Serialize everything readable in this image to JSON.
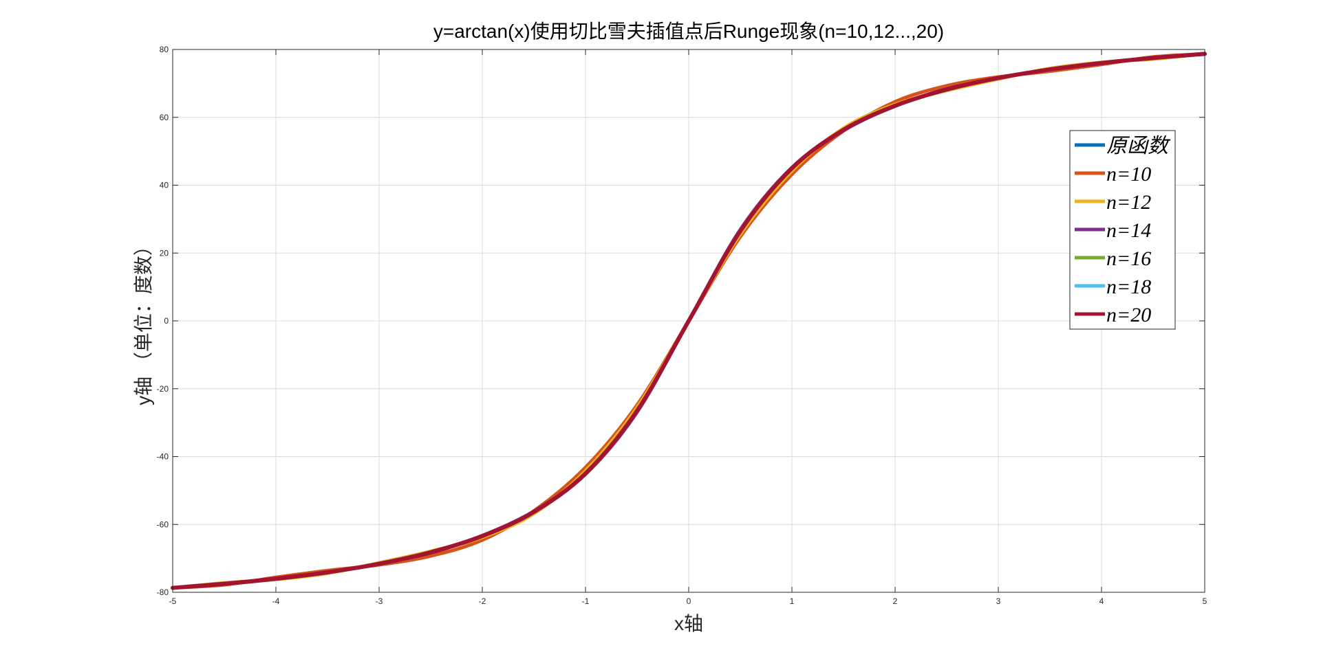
{
  "chart_data": {
    "type": "line",
    "title": "y=arctan(x)使用切比雪夫插值点后Runge现象(n=10,12...,20)",
    "xlabel": "x轴",
    "ylabel": "y轴  （单位：度数）",
    "xlim": [
      -5,
      5
    ],
    "ylim": [
      -80,
      80
    ],
    "xticks": [
      -5,
      -4,
      -3,
      -2,
      -1,
      0,
      1,
      2,
      3,
      4,
      5
    ],
    "yticks": [
      -80,
      -60,
      -40,
      -20,
      0,
      20,
      40,
      60,
      80
    ],
    "xtick_labels": [
      "-5",
      "-4",
      "-3",
      "-2",
      "-1",
      "0",
      "1",
      "2",
      "3",
      "4",
      "5"
    ],
    "ytick_labels": [
      "-80",
      "-60",
      "-40",
      "-20",
      "0",
      "20",
      "40",
      "60",
      "80"
    ],
    "grid": true,
    "legend_position": "right",
    "x": [
      -5,
      -4.5,
      -4,
      -3.5,
      -3,
      -2.5,
      -2,
      -1.5,
      -1,
      -0.5,
      0,
      0.5,
      1,
      1.5,
      2,
      2.5,
      3,
      3.5,
      4,
      4.5,
      5
    ],
    "series": [
      {
        "name": "原函数",
        "color": "#0072BD",
        "values": [
          -78.7,
          -77.5,
          -76.0,
          -74.1,
          -71.6,
          -68.2,
          -63.4,
          -56.3,
          -45.0,
          -26.6,
          0,
          26.6,
          45.0,
          56.3,
          63.4,
          68.2,
          71.6,
          74.1,
          76.0,
          77.5,
          78.7
        ]
      },
      {
        "name": "n=10",
        "color": "#D95319",
        "values": [
          -78.7,
          -77.8,
          -75.6,
          -73.6,
          -71.9,
          -69.3,
          -64.6,
          -56.0,
          -43.2,
          -24.8,
          0,
          24.8,
          43.2,
          56.0,
          64.6,
          69.3,
          71.9,
          73.6,
          75.6,
          77.8,
          78.7
        ]
      },
      {
        "name": "n=12",
        "color": "#EDB120",
        "values": [
          -78.7,
          -77.2,
          -76.2,
          -74.4,
          -71.3,
          -67.9,
          -63.8,
          -56.8,
          -44.2,
          -25.5,
          0,
          25.5,
          44.2,
          56.8,
          63.8,
          67.9,
          71.3,
          74.4,
          76.2,
          77.2,
          78.7
        ]
      },
      {
        "name": "n=14",
        "color": "#7E2F8E",
        "values": [
          -78.7,
          -77.6,
          -75.9,
          -74.2,
          -71.5,
          -68.4,
          -63.3,
          -56.1,
          -45.2,
          -26.9,
          0,
          26.9,
          45.2,
          56.1,
          63.3,
          68.4,
          71.5,
          74.2,
          75.9,
          77.6,
          78.7
        ]
      },
      {
        "name": "n=16",
        "color": "#77AC30",
        "values": [
          -78.7,
          -77.4,
          -76.1,
          -74.0,
          -71.7,
          -68.1,
          -63.5,
          -56.4,
          -44.9,
          -26.4,
          0,
          26.4,
          44.9,
          56.4,
          63.5,
          68.1,
          71.7,
          74.0,
          76.1,
          77.4,
          78.7
        ]
      },
      {
        "name": "n=18",
        "color": "#4DBEEE",
        "values": [
          -78.7,
          -77.5,
          -76.0,
          -74.1,
          -71.6,
          -68.2,
          -63.4,
          -56.2,
          -45.1,
          -26.7,
          0,
          26.7,
          45.1,
          56.2,
          63.4,
          68.2,
          71.6,
          74.1,
          76.0,
          77.5,
          78.7
        ]
      },
      {
        "name": "n=20",
        "color": "#A2142F",
        "values": [
          -78.7,
          -77.5,
          -76.0,
          -74.1,
          -71.6,
          -68.2,
          -63.4,
          -56.3,
          -45.0,
          -26.5,
          0,
          26.5,
          45.0,
          56.3,
          63.4,
          68.2,
          71.6,
          74.1,
          76.0,
          77.5,
          78.7
        ]
      }
    ]
  }
}
